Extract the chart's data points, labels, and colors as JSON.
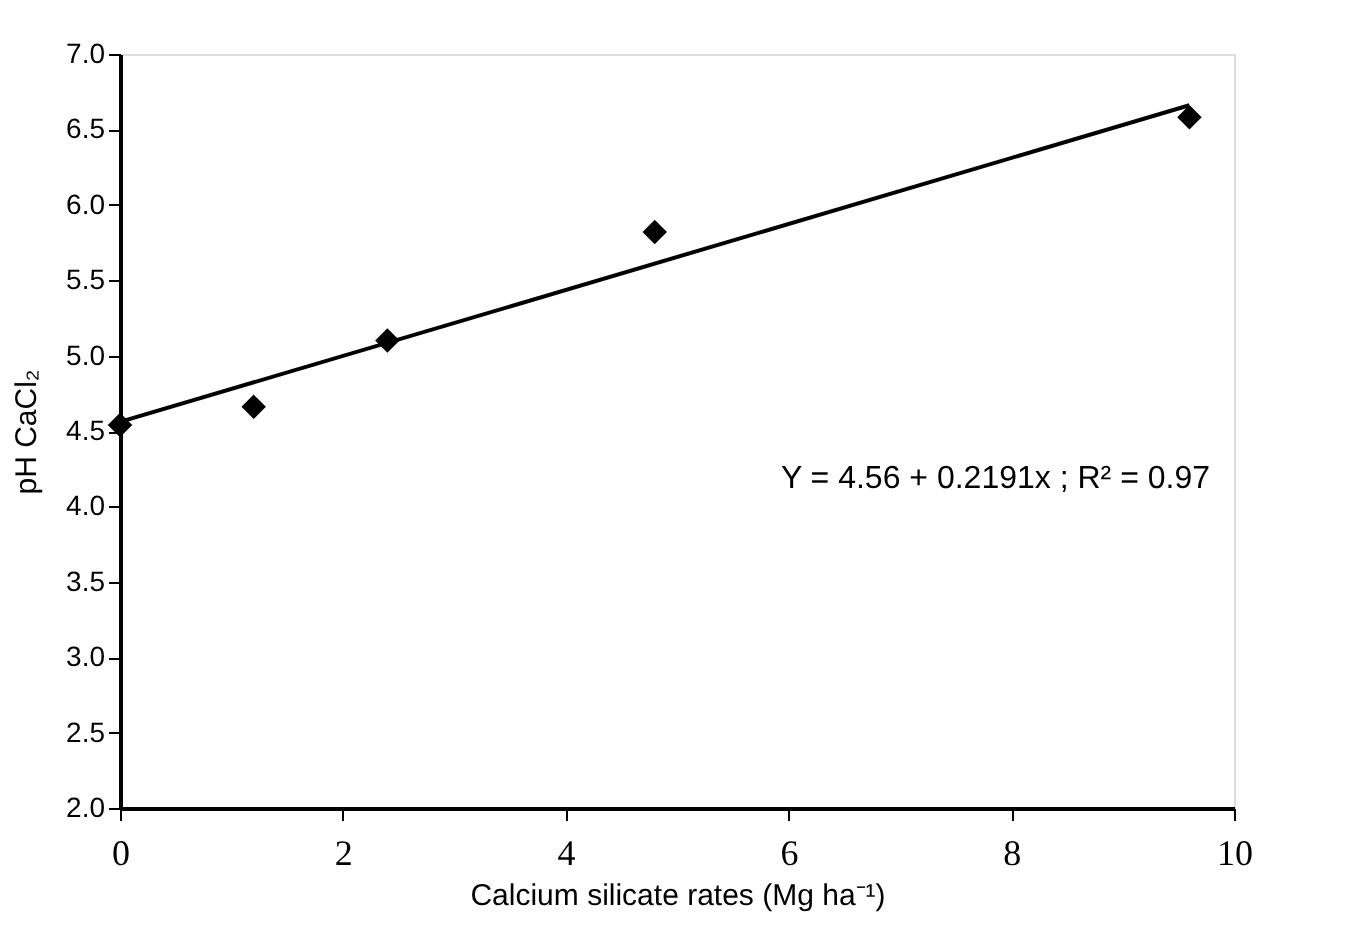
{
  "chart_data": {
    "type": "scatter",
    "xlabel": "Calcium silicate rates (Mg ha⁻¹)",
    "ylabel": "pH CaCl₂",
    "x": [
      0,
      1.2,
      2.4,
      4.8,
      9.6
    ],
    "series": [
      {
        "color": "#000000",
        "marker": "diamond",
        "values": [
          4.54,
          4.66,
          5.1,
          5.82,
          6.58
        ]
      },
      {
        "type": "line",
        "color": "#000000",
        "x": [
          0,
          9.6
        ],
        "values": [
          4.56,
          6.66
        ],
        "line_style": "solid"
      }
    ],
    "xlim": [
      0,
      10
    ],
    "xticks": [
      0,
      2,
      4,
      6,
      8,
      10
    ],
    "ylim": [
      2.0,
      7.0
    ],
    "yticks": [
      {
        "value": 2,
        "label": "2.0"
      },
      {
        "value": 2.5,
        "label": "2.5"
      },
      {
        "value": 3,
        "label": "3.0"
      },
      {
        "value": 3.5,
        "label": "3.5"
      },
      {
        "value": 4,
        "label": "4.0"
      },
      {
        "value": 4.5,
        "label": "4.5"
      },
      {
        "value": 5,
        "label": "5.0"
      },
      {
        "value": 5.5,
        "label": "5.5"
      },
      {
        "value": 6,
        "label": "6.0"
      },
      {
        "value": 6.5,
        "label": "6.5"
      },
      {
        "value": 7,
        "label": "7.0"
      }
    ],
    "annotations": [
      "Y = 4.56 + 0.2191x ; R² = 0.97"
    ],
    "grid": false
  }
}
